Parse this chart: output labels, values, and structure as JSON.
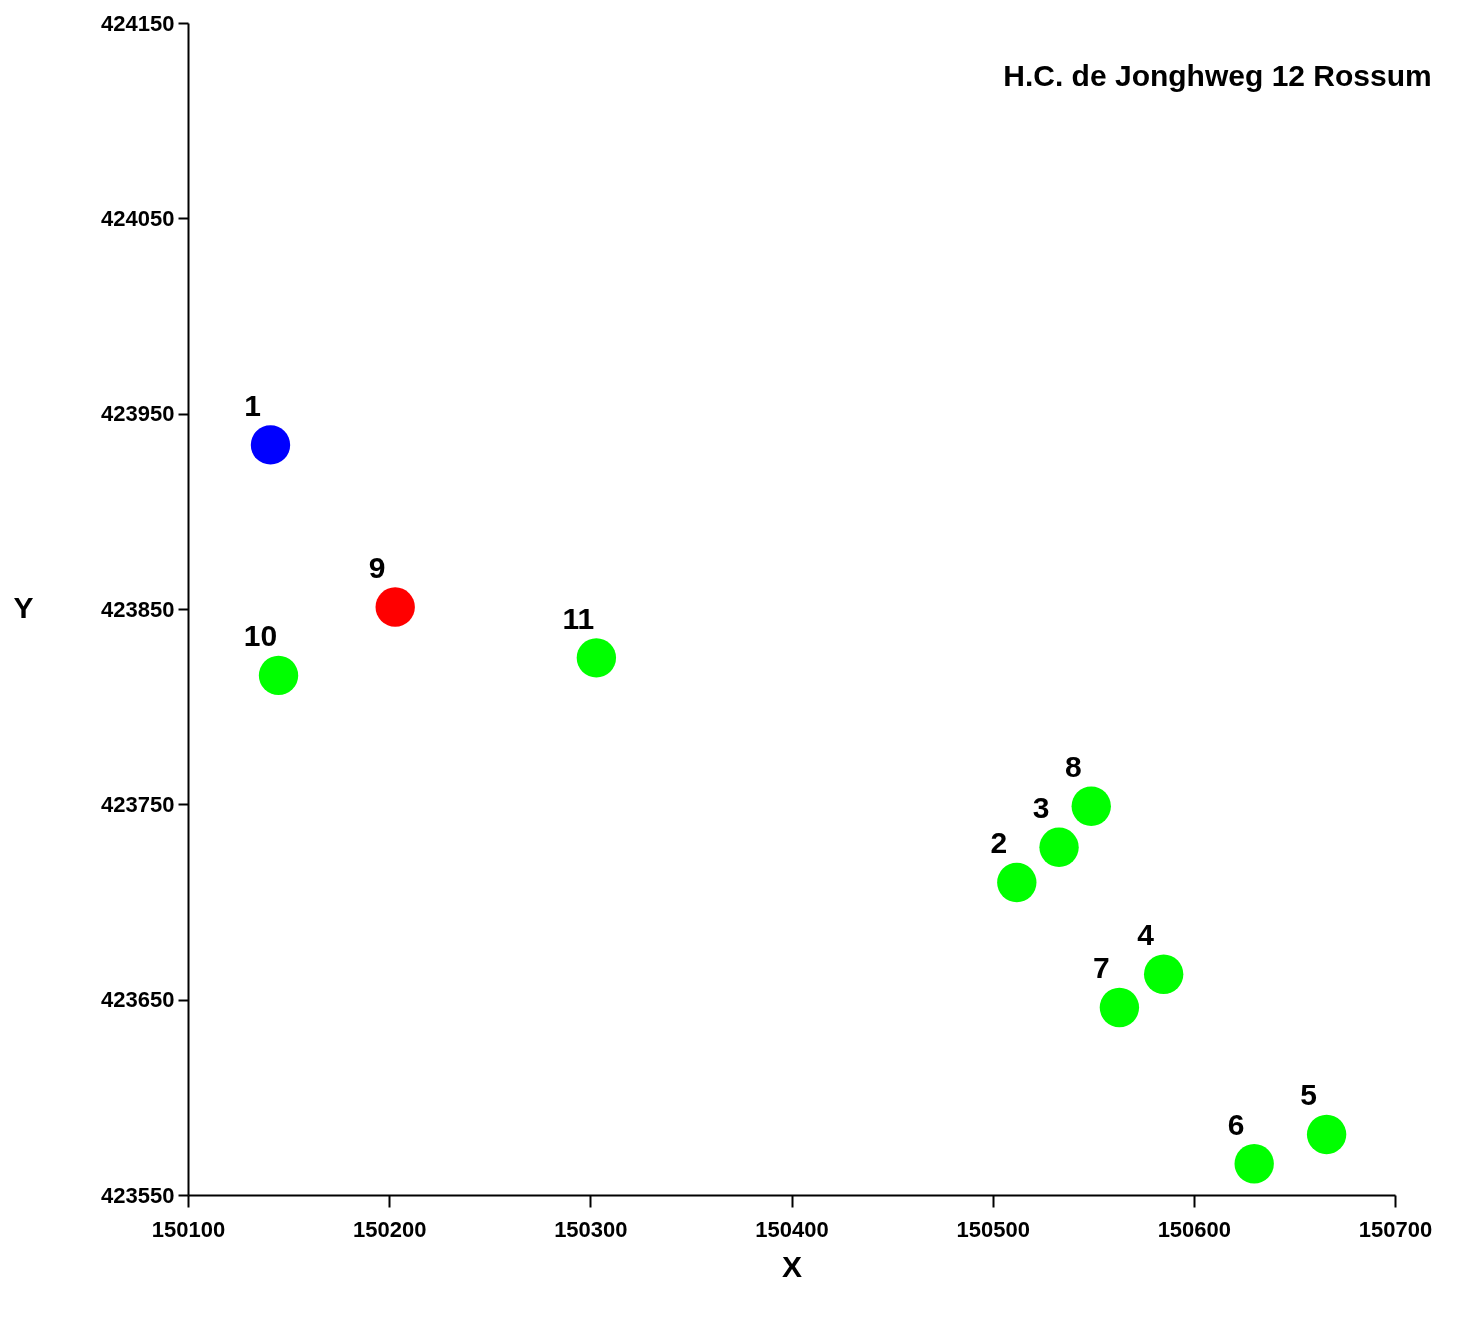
{
  "chart_data": {
    "type": "scatter",
    "title": "H.C. de Jonghweg 12 Rossum",
    "xlabel": "X",
    "ylabel": "Y",
    "x": [
      150141,
      150512,
      150533,
      150585,
      150666,
      150630,
      150563,
      150549,
      150203,
      150145,
      150303
    ],
    "values": [
      423934,
      423710,
      423728,
      423663,
      423581,
      423566,
      423646,
      423749,
      423851,
      423816,
      423825
    ],
    "colors": [
      "#0000ff",
      "#00ff00",
      "#00ff00",
      "#00ff00",
      "#00ff00",
      "#00ff00",
      "#00ff00",
      "#00ff00",
      "#ff0000",
      "#00ff00",
      "#00ff00"
    ],
    "annotations": [
      {
        "text": "1",
        "x": 150141,
        "y": 423934
      },
      {
        "text": "2",
        "x": 150512,
        "y": 423710
      },
      {
        "text": "3",
        "x": 150533,
        "y": 423728
      },
      {
        "text": "4",
        "x": 150585,
        "y": 423663
      },
      {
        "text": "5",
        "x": 150666,
        "y": 423581
      },
      {
        "text": "6",
        "x": 150630,
        "y": 423566
      },
      {
        "text": "7",
        "x": 150563,
        "y": 423646
      },
      {
        "text": "8",
        "x": 150549,
        "y": 423749
      },
      {
        "text": "9",
        "x": 150203,
        "y": 423851
      },
      {
        "text": "10",
        "x": 150145,
        "y": 423816
      },
      {
        "text": "11",
        "x": 150303,
        "y": 423825
      }
    ],
    "xlim": [
      150100,
      150700
    ],
    "xticks": [
      150100,
      150200,
      150300,
      150400,
      150500,
      150600,
      150700
    ],
    "ylim": [
      423550,
      424150
    ],
    "yticks": [
      423550,
      423650,
      423750,
      423850,
      423950,
      424050,
      424150
    ],
    "grid": false,
    "marker": "circle"
  }
}
